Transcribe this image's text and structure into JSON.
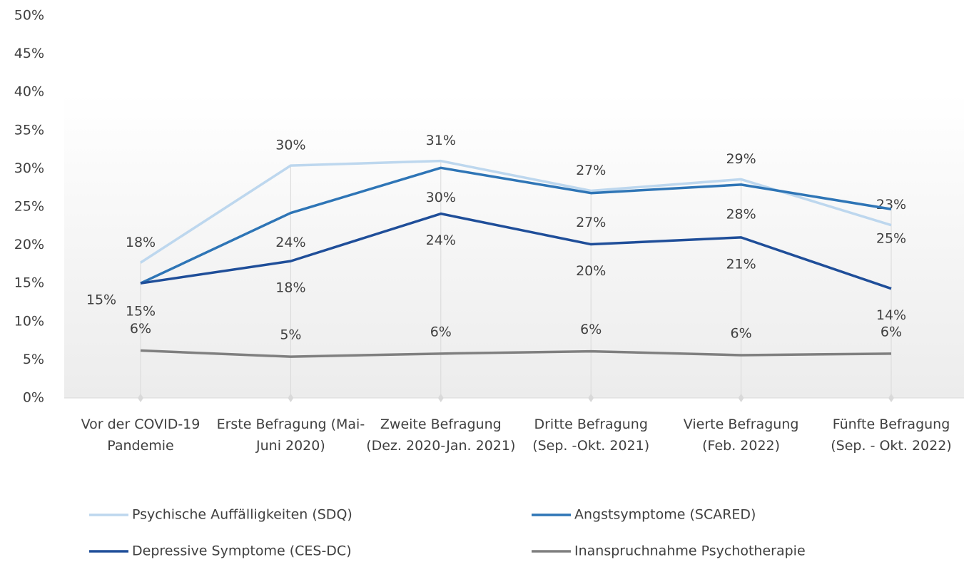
{
  "chart_data": {
    "type": "line",
    "categories": [
      "Vor der COVID-19 Pandemie",
      "Erste Befragung (Mai-Juni 2020)",
      "Zweite Befragung (Dez. 2020-Jan. 2021)",
      "Dritte Befragung (Sep. -Okt. 2021)",
      "Vierte Befragung (Feb. 2022)",
      "Fünfte Befragung (Sep. - Okt. 2022)"
    ],
    "series": [
      {
        "name": "Psychische Auffälligkeiten (SDQ)",
        "color": "#bdd7ee",
        "values": [
          17.7,
          30.4,
          31.0,
          27.1,
          28.6,
          22.6
        ],
        "value_labels": [
          "18%",
          "30%",
          "31%",
          "27%",
          "29%",
          "23%"
        ]
      },
      {
        "name": "Angstsymptome (SCARED)",
        "color": "#2e75b6",
        "values": [
          15.0,
          24.2,
          30.1,
          26.8,
          27.9,
          24.7
        ],
        "value_labels": [
          "15%",
          "24%",
          "30%",
          "27%",
          "28%",
          "25%"
        ]
      },
      {
        "name": "Depressive Symptome (CES-DC)",
        "color": "#1f4e99",
        "values": [
          15.0,
          17.9,
          24.1,
          20.1,
          21.0,
          14.3
        ],
        "value_labels": [
          "15%",
          "18%",
          "24%",
          "20%",
          "21%",
          "14%"
        ]
      },
      {
        "name": "Inanspruchnahme Psychotherapie",
        "color": "#7f7f7f",
        "values": [
          6.2,
          5.4,
          5.8,
          6.1,
          5.6,
          5.8
        ],
        "value_labels": [
          "6%",
          "5%",
          "6%",
          "6%",
          "6%",
          "6%"
        ]
      }
    ],
    "ylim": [
      0,
      50
    ],
    "yticks": [
      {
        "value": 0,
        "label": "0%"
      },
      {
        "value": 5,
        "label": "5%"
      },
      {
        "value": 10,
        "label": "10%"
      },
      {
        "value": 15,
        "label": "15%"
      },
      {
        "value": 20,
        "label": "20%"
      },
      {
        "value": 25,
        "label": "25%"
      },
      {
        "value": 30,
        "label": "30%"
      },
      {
        "value": 35,
        "label": "35%"
      },
      {
        "value": 40,
        "label": "40%"
      },
      {
        "value": 45,
        "label": "45%"
      },
      {
        "value": 50,
        "label": "50%"
      }
    ],
    "grid": false,
    "legend": "bottom"
  }
}
